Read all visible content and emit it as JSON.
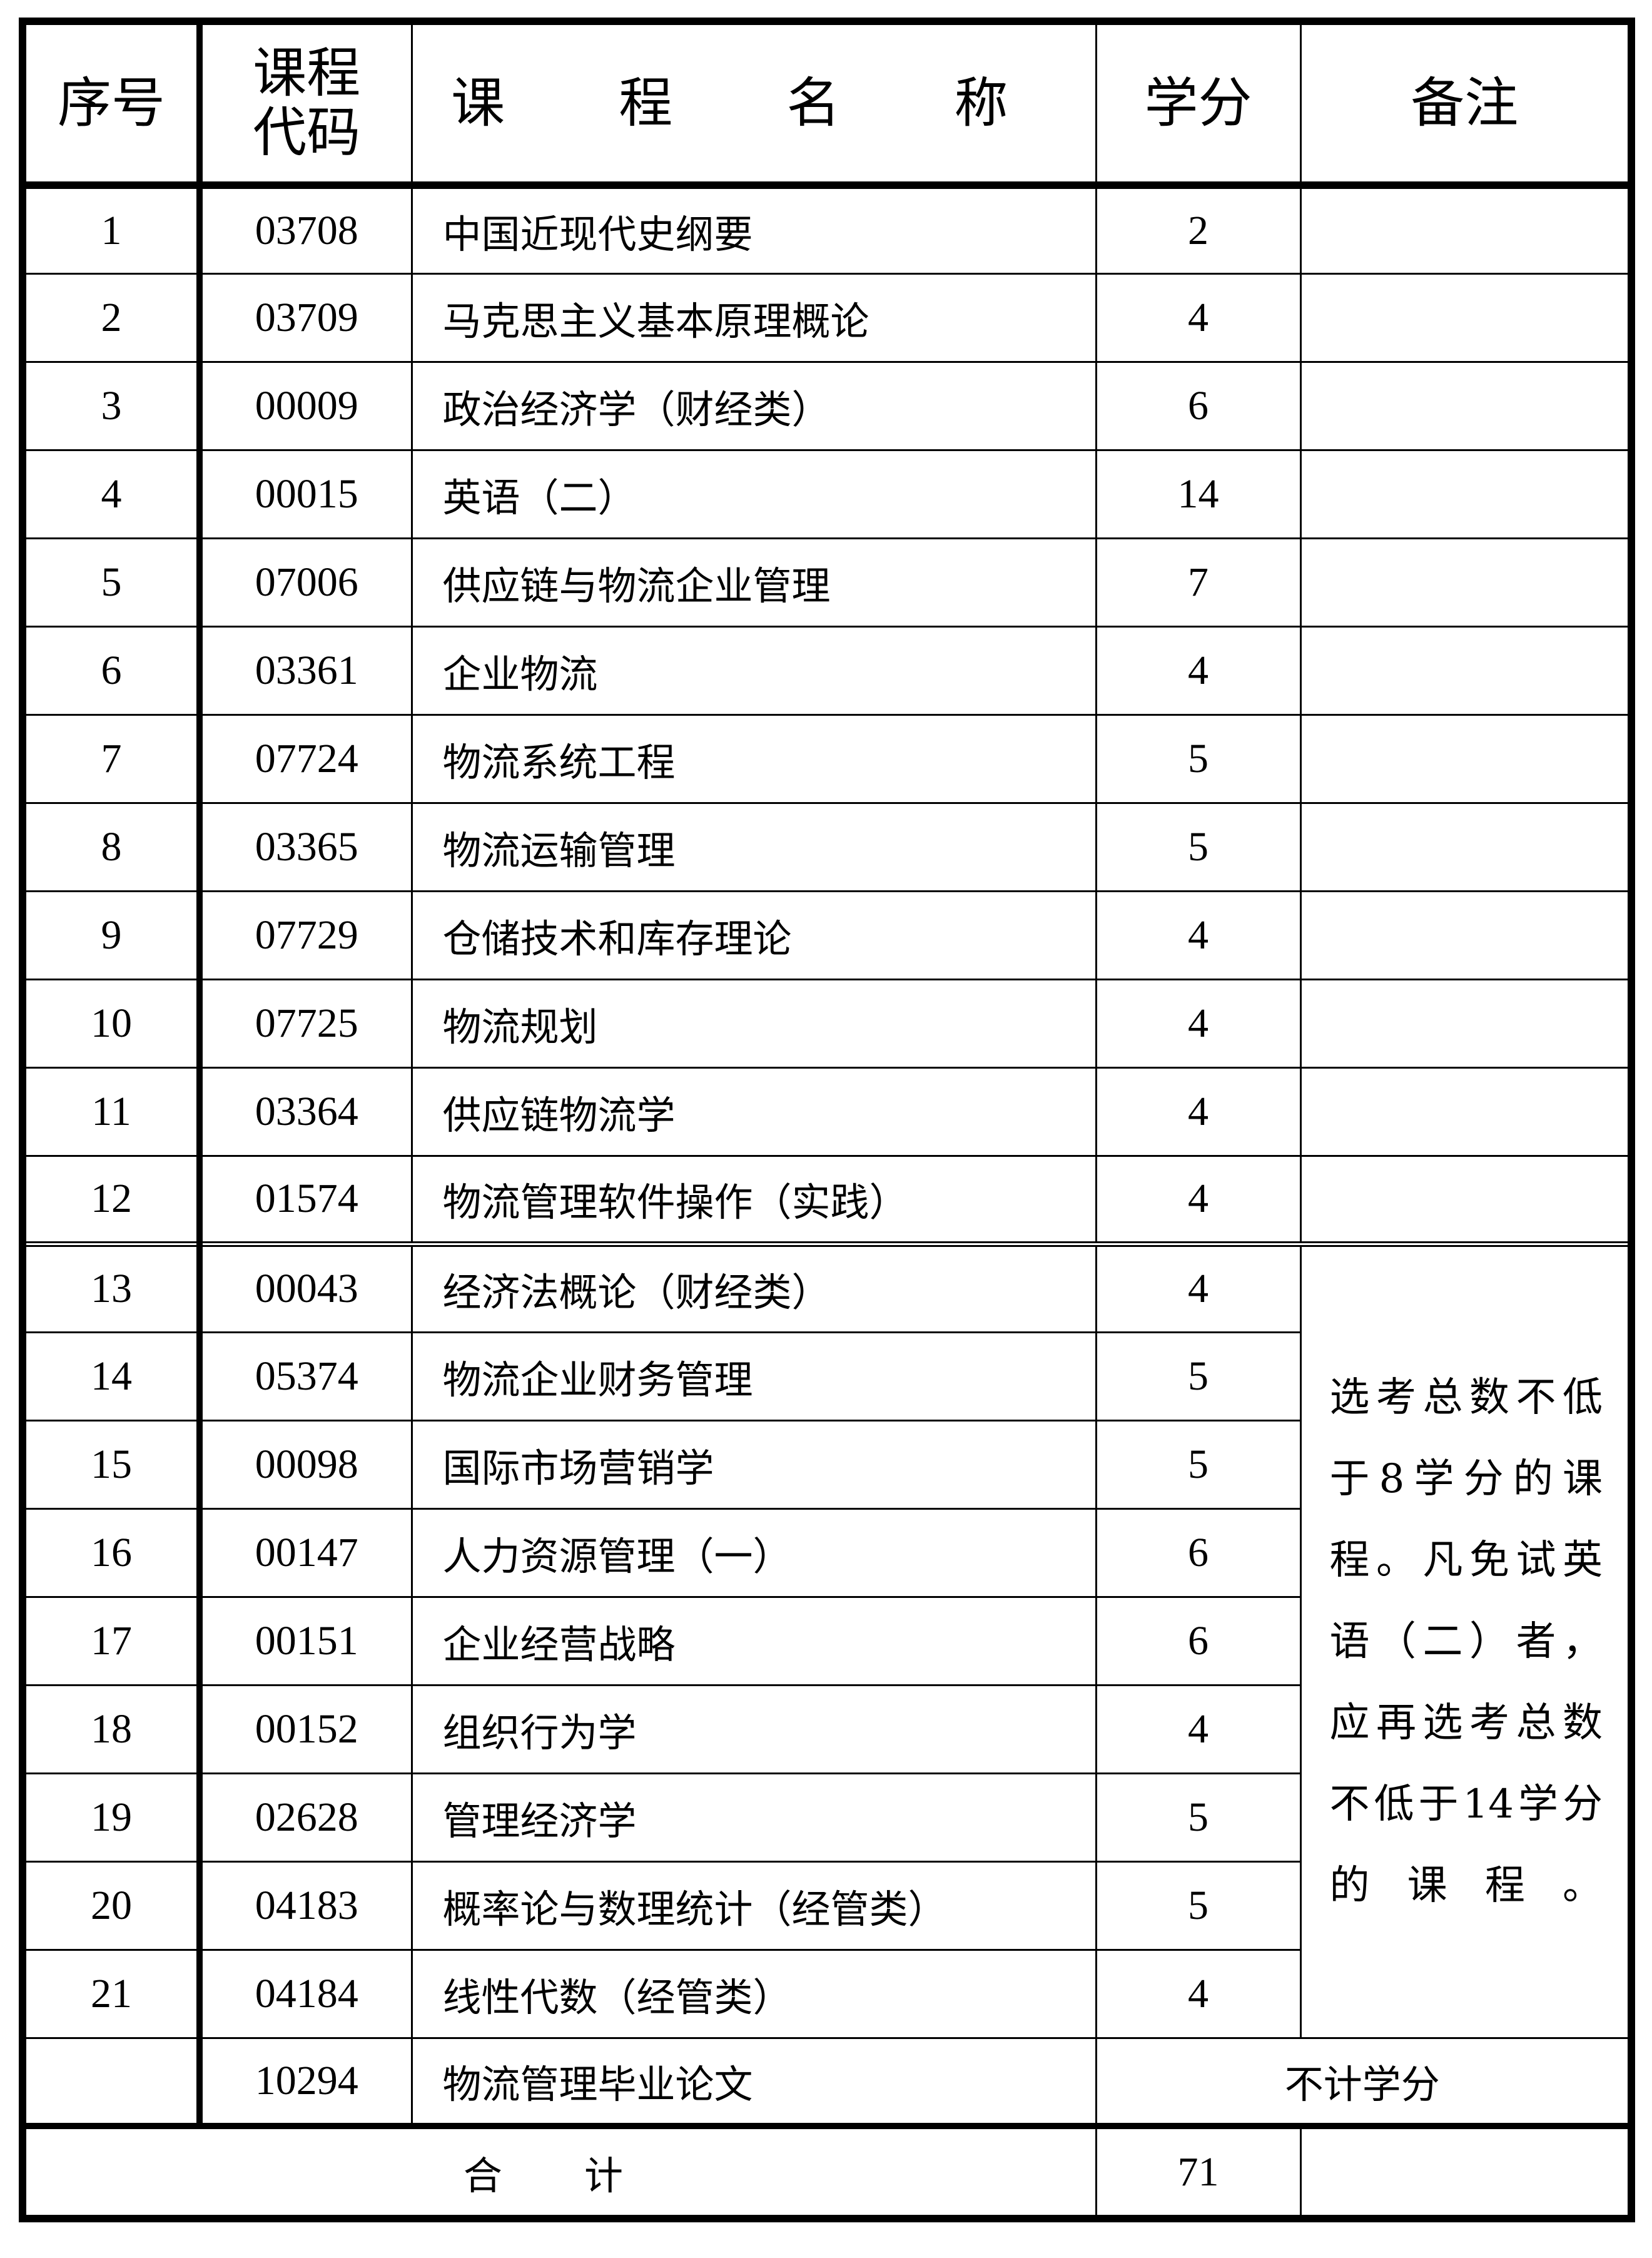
{
  "headers": {
    "seq": "序号",
    "code": "课程代码",
    "name": "课 程 名 称",
    "credit": "学分",
    "note": "备注"
  },
  "rows": [
    {
      "seq": "1",
      "code": "03708",
      "name": "中国近现代史纲要",
      "credit": "2"
    },
    {
      "seq": "2",
      "code": "03709",
      "name": "马克思主义基本原理概论",
      "credit": "4"
    },
    {
      "seq": "3",
      "code": "00009",
      "name": "政治经济学（财经类）",
      "credit": "6"
    },
    {
      "seq": "4",
      "code": "00015",
      "name": "英语（二）",
      "credit": "14"
    },
    {
      "seq": "5",
      "code": "07006",
      "name": "供应链与物流企业管理",
      "credit": "7"
    },
    {
      "seq": "6",
      "code": "03361",
      "name": "企业物流",
      "credit": "4"
    },
    {
      "seq": "7",
      "code": "07724",
      "name": "物流系统工程",
      "credit": "5"
    },
    {
      "seq": "8",
      "code": "03365",
      "name": "物流运输管理",
      "credit": "5"
    },
    {
      "seq": "9",
      "code": "07729",
      "name": "仓储技术和库存理论",
      "credit": "4"
    },
    {
      "seq": "10",
      "code": "07725",
      "name": "物流规划",
      "credit": "4"
    },
    {
      "seq": "11",
      "code": "03364",
      "name": "供应链物流学",
      "credit": "4"
    },
    {
      "seq": "12",
      "code": "01574",
      "name": "物流管理软件操作（实践）",
      "credit": "4"
    },
    {
      "seq": "13",
      "code": "00043",
      "name": "经济法概论（财经类）",
      "credit": "4"
    },
    {
      "seq": "14",
      "code": "05374",
      "name": "物流企业财务管理",
      "credit": "5"
    },
    {
      "seq": "15",
      "code": "00098",
      "name": "国际市场营销学",
      "credit": "5"
    },
    {
      "seq": "16",
      "code": "00147",
      "name": "人力资源管理（一）",
      "credit": "6"
    },
    {
      "seq": "17",
      "code": "00151",
      "name": "企业经营战略",
      "credit": "6"
    },
    {
      "seq": "18",
      "code": "00152",
      "name": "组织行为学",
      "credit": "4"
    },
    {
      "seq": "19",
      "code": "02628",
      "name": "管理经济学",
      "credit": "5"
    },
    {
      "seq": "20",
      "code": "04183",
      "name": "概率论与数理统计（经管类）",
      "credit": "5"
    },
    {
      "seq": "21",
      "code": "04184",
      "name": "线性代数（经管类）",
      "credit": "4"
    }
  ],
  "elective_note": "选考总数不低于8学分的课程。凡免试英语（二）者，应再选考总数不低于14学分的课程。",
  "thesis": {
    "code": "10294",
    "name": "物流管理毕业论文",
    "credit_note": "不计学分"
  },
  "total": {
    "label": "合 计",
    "credit": "71"
  }
}
